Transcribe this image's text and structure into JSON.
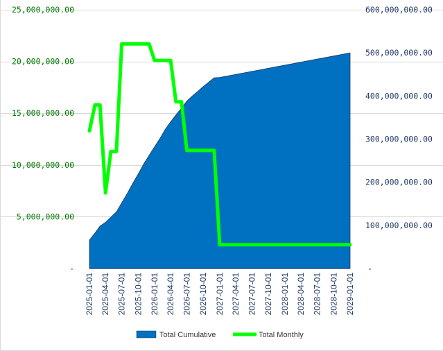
{
  "chart_data": {
    "type": "area",
    "colors": {
      "cumulative_fill": "#0070C0",
      "monthly_line": "#00FF00",
      "left_axis_text": "#007A00",
      "right_axis_text": "#1F3864",
      "x_axis_text": "#1F3864",
      "grid": "#D9D9D9"
    },
    "grid": true,
    "legend": "bottom",
    "left_axis": {
      "ylim": [
        0,
        25000000
      ],
      "ticks": [
        {
          "value": 0,
          "label": "-"
        },
        {
          "value": 5000000,
          "label": "5,000,000.00"
        },
        {
          "value": 10000000,
          "label": "10,000,000.00"
        },
        {
          "value": 15000000,
          "label": "15,000,000.00"
        },
        {
          "value": 20000000,
          "label": "20,000,000.00"
        },
        {
          "value": 25000000,
          "label": "25,000,000.00"
        }
      ]
    },
    "right_axis": {
      "ylim": [
        0,
        600000000
      ],
      "ticks": [
        {
          "value": 0,
          "label": "-"
        },
        {
          "value": 100000000,
          "label": "100,000,000.00"
        },
        {
          "value": 200000000,
          "label": "200,000,000.00"
        },
        {
          "value": 300000000,
          "label": "300,000,000.00"
        },
        {
          "value": 400000000,
          "label": "400,000,000.00"
        },
        {
          "value": 500000000,
          "label": "500,000,000.00"
        },
        {
          "value": 600000000,
          "label": "600,000,000.00"
        }
      ]
    },
    "x_ticks": [
      "2025-01-01",
      "2025-04-01",
      "2025-07-01",
      "2025-10-01",
      "2026-01-01",
      "2026-04-01",
      "2026-07-01",
      "2026-10-01",
      "2027-01-01",
      "2027-04-01",
      "2027-07-01",
      "2027-10-01",
      "2028-01-01",
      "2028-04-01",
      "2028-07-01",
      "2028-10-01",
      "2029-01-01"
    ],
    "series": [
      {
        "name": "Total Cumulative",
        "axis": "right",
        "kind": "area",
        "x": [
          "2025-01-01",
          "2025-02-01",
          "2025-03-01",
          "2025-04-01",
          "2025-05-01",
          "2025-06-01",
          "2025-07-01",
          "2025-08-01",
          "2025-09-01",
          "2025-10-01",
          "2025-11-01",
          "2025-12-01",
          "2026-01-01",
          "2026-02-01",
          "2026-03-01",
          "2026-04-01",
          "2026-05-01",
          "2026-06-01",
          "2026-07-01",
          "2026-08-01",
          "2026-09-01",
          "2026-10-01",
          "2026-11-01",
          "2026-12-01",
          "2027-01-01",
          "2029-01-01"
        ],
        "values": [
          66000000,
          82000000,
          98000000,
          107000000,
          119000000,
          131000000,
          152000000,
          174000000,
          197000000,
          219000000,
          242000000,
          262000000,
          282000000,
          302000000,
          322000000,
          340000000,
          356000000,
          372000000,
          388000000,
          400000000,
          411000000,
          422000000,
          432000000,
          442000000,
          443000000,
          500000000
        ]
      },
      {
        "name": "Total Monthly",
        "axis": "left",
        "kind": "line",
        "x": [
          "2025-01-01",
          "2025-02-01",
          "2025-03-01",
          "2025-04-01",
          "2025-05-01",
          "2025-06-01",
          "2025-07-01",
          "2025-08-01",
          "2025-09-01",
          "2025-10-01",
          "2025-11-01",
          "2025-12-01",
          "2026-01-01",
          "2026-02-01",
          "2026-03-01",
          "2026-04-01",
          "2026-05-01",
          "2026-06-01",
          "2026-07-01",
          "2026-08-01",
          "2026-09-01",
          "2026-10-01",
          "2026-11-01",
          "2026-12-01",
          "2027-01-01",
          "2029-01-01"
        ],
        "values": [
          13300000,
          15800000,
          15800000,
          7300000,
          11300000,
          11300000,
          21700000,
          21700000,
          21700000,
          21700000,
          21700000,
          21700000,
          20100000,
          20100000,
          20100000,
          20100000,
          16100000,
          16100000,
          11400000,
          11400000,
          11400000,
          11400000,
          11400000,
          11400000,
          2300000,
          2300000
        ]
      }
    ]
  }
}
